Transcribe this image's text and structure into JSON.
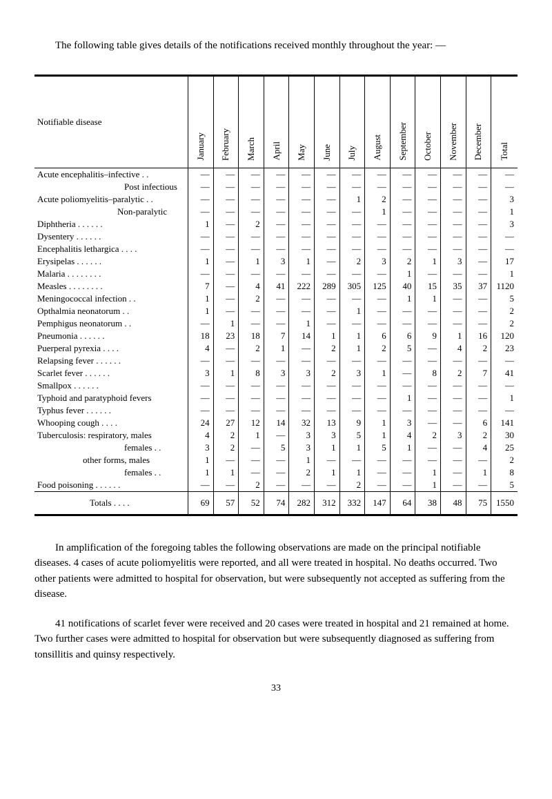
{
  "intro_text": "The following table gives details of the notifications received monthly throughout the year: —",
  "header": {
    "disease": "Notifiable disease",
    "months": [
      "January",
      "February",
      "March",
      "April",
      "May",
      "June",
      "July",
      "August",
      "September",
      "October",
      "November",
      "December",
      "Total"
    ]
  },
  "rows": [
    {
      "label": "Acute encephalitis–infective  . .",
      "v": [
        "—",
        "—",
        "—",
        "—",
        "—",
        "—",
        "—",
        "—",
        "—",
        "—",
        "—",
        "—",
        "—"
      ]
    },
    {
      "label": "Post infectious",
      "indent": 130,
      "v": [
        "—",
        "—",
        "—",
        "—",
        "—",
        "—",
        "—",
        "—",
        "—",
        "—",
        "—",
        "—",
        "—"
      ]
    },
    {
      "label": "Acute poliomyelitis–paralytic  . .",
      "v": [
        "—",
        "—",
        "—",
        "—",
        "—",
        "—",
        "1",
        "2",
        "—",
        "—",
        "—",
        "—",
        "3"
      ]
    },
    {
      "label": "Non-paralytic",
      "indent": 120,
      "v": [
        "—",
        "—",
        "—",
        "—",
        "—",
        "—",
        "—",
        "1",
        "—",
        "—",
        "—",
        "—",
        "1"
      ]
    },
    {
      "label": "Diphtheria    . .    . .    . .",
      "v": [
        "1",
        "—",
        "2",
        "—",
        "—",
        "—",
        "—",
        "—",
        "—",
        "—",
        "—",
        "—",
        "3"
      ]
    },
    {
      "label": "Dysentery       . .    . .    . .",
      "v": [
        "—",
        "—",
        "—",
        "—",
        "—",
        "—",
        "—",
        "—",
        "—",
        "—",
        "—",
        "—",
        "—"
      ]
    },
    {
      "label": "Encephalitis lethargica . .    . .",
      "v": [
        "—",
        "—",
        "—",
        "—",
        "—",
        "—",
        "—",
        "—",
        "—",
        "—",
        "—",
        "—",
        "—"
      ]
    },
    {
      "label": "Erysipelas      . .    . .    . .",
      "v": [
        "1",
        "—",
        "1",
        "3",
        "1",
        "—",
        "2",
        "3",
        "2",
        "1",
        "3",
        "—",
        "17"
      ]
    },
    {
      "label": "Malaria . .    . .    . .    . .",
      "v": [
        "—",
        "—",
        "—",
        "—",
        "—",
        "—",
        "—",
        "—",
        "1",
        "—",
        "—",
        "—",
        "1"
      ]
    },
    {
      "label": "Measles . .    . .    . .    . .",
      "v": [
        "7",
        "—",
        "4",
        "41",
        "222",
        "289",
        "305",
        "125",
        "40",
        "15",
        "35",
        "37",
        "1120"
      ]
    },
    {
      "label": "Meningococcal infection    . .",
      "v": [
        "1",
        "—",
        "2",
        "—",
        "—",
        "—",
        "—",
        "—",
        "1",
        "1",
        "—",
        "—",
        "5"
      ]
    },
    {
      "label": "Opthalmia neonatorum      . .",
      "v": [
        "1",
        "—",
        "—",
        "—",
        "—",
        "—",
        "1",
        "—",
        "—",
        "—",
        "—",
        "—",
        "2"
      ]
    },
    {
      "label": "Pemphigus neonatorum     . .",
      "v": [
        "—",
        "1",
        "—",
        "—",
        "1",
        "—",
        "—",
        "—",
        "—",
        "—",
        "—",
        "—",
        "2"
      ]
    },
    {
      "label": "Pneumonia      . .    . .    . .",
      "v": [
        "18",
        "23",
        "18",
        "7",
        "14",
        "1",
        "1",
        "6",
        "6",
        "9",
        "1",
        "16",
        "120"
      ]
    },
    {
      "label": "Puerperal pyrexia      . .    . .",
      "v": [
        "4",
        "—",
        "2",
        "1",
        "—",
        "2",
        "1",
        "2",
        "5",
        "—",
        "4",
        "2",
        "23"
      ]
    },
    {
      "label": "Relapsing fever . .    . .    . .",
      "v": [
        "—",
        "—",
        "—",
        "—",
        "—",
        "—",
        "—",
        "—",
        "—",
        "—",
        "—",
        "—",
        "—"
      ]
    },
    {
      "label": "Scarlet fever    . .    . .    . .",
      "v": [
        "3",
        "1",
        "8",
        "3",
        "3",
        "2",
        "3",
        "1",
        "—",
        "8",
        "2",
        "7",
        "41"
      ]
    },
    {
      "label": "Smallpox        . .    . .    . .",
      "v": [
        "—",
        "—",
        "—",
        "—",
        "—",
        "—",
        "—",
        "—",
        "—",
        "—",
        "—",
        "—",
        "—"
      ]
    },
    {
      "label": "Typhoid and paratyphoid fevers",
      "v": [
        "—",
        "—",
        "—",
        "—",
        "—",
        "—",
        "—",
        "—",
        "1",
        "—",
        "—",
        "—",
        "1"
      ]
    },
    {
      "label": "Typhus fever   . .    . .    . .",
      "v": [
        "—",
        "—",
        "—",
        "—",
        "—",
        "—",
        "—",
        "—",
        "—",
        "—",
        "—",
        "—",
        "—"
      ]
    },
    {
      "label": "Whooping cough       . .    . .",
      "v": [
        "24",
        "27",
        "12",
        "14",
        "32",
        "13",
        "9",
        "1",
        "3",
        "—",
        "—",
        "6",
        "141"
      ]
    },
    {
      "label": "Tuberculosis: respiratory, males",
      "v": [
        "4",
        "2",
        "1",
        "—",
        "3",
        "3",
        "5",
        "1",
        "4",
        "2",
        "3",
        "2",
        "30"
      ]
    },
    {
      "label": "females  . .",
      "indent": 130,
      "v": [
        "3",
        "2",
        "—",
        "5",
        "3",
        "1",
        "1",
        "5",
        "1",
        "—",
        "—",
        "4",
        "25"
      ]
    },
    {
      "label": "other forms, males",
      "indent": 70,
      "v": [
        "1",
        "—",
        "—",
        "—",
        "1",
        "—",
        "—",
        "—",
        "—",
        "—",
        "—",
        "—",
        "2"
      ]
    },
    {
      "label": "females  . .",
      "indent": 130,
      "v": [
        "1",
        "1",
        "—",
        "—",
        "2",
        "1",
        "1",
        "—",
        "—",
        "1",
        "—",
        "1",
        "8"
      ]
    },
    {
      "label": "Food poisoning . .    . .    . .",
      "v": [
        "—",
        "—",
        "2",
        "—",
        "—",
        "—",
        "2",
        "—",
        "—",
        "1",
        "—",
        "—",
        "5"
      ]
    }
  ],
  "totals": {
    "label": "Totals   . .    . .",
    "v": [
      "69",
      "57",
      "52",
      "74",
      "282",
      "312",
      "332",
      "147",
      "64",
      "38",
      "48",
      "75",
      "1550"
    ]
  },
  "para1": "In amplification of the foregoing tables the following observations are made on the principal notifiable diseases.  4 cases of acute poliomyelitis were reported, and all were treated in hospital.  No deaths occurred.  Two other patients were admitted to hospital for observation, but were subsequently not accepted as suffering from the disease.",
  "para2": "41 notifications of scarlet fever were received and 20 cases were treated in hospital and 21 remained at home.  Two further cases were admitted to hospital for observation but were subsequently diagnosed as suffering from tonsillitis and quinsy respectively.",
  "page_number": "33"
}
